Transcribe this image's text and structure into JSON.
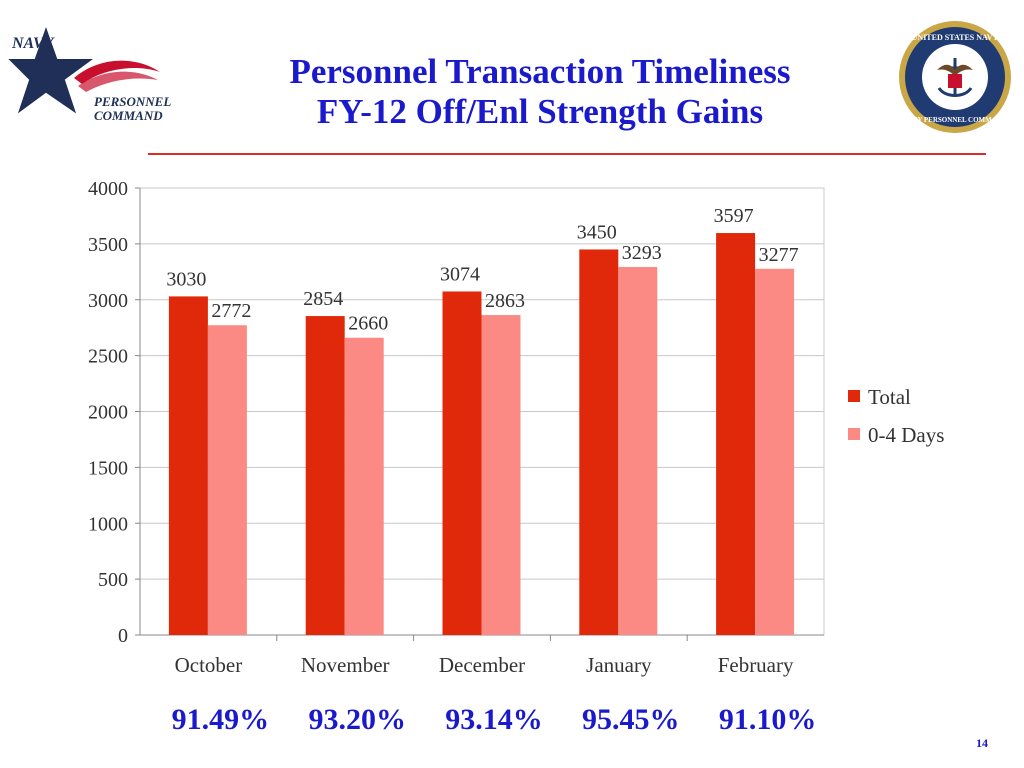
{
  "slide": {
    "title_line1": "Personnel Transaction Timeliness",
    "title_line2": "FY-12 Off/Enl Strength Gains",
    "page_number": "14"
  },
  "logo_left": {
    "text_line1": "NAVY",
    "text_line2": "PERSONNEL",
    "text_line3": "COMMAND"
  },
  "logo_right": {
    "text_top": "UNITED STATES NAVY",
    "text_bottom": "NAVY PERSONNEL COMMAND"
  },
  "chart_data": {
    "type": "bar",
    "categories": [
      "October",
      "November",
      "December",
      "January",
      "February"
    ],
    "series": [
      {
        "name": "Total",
        "color": "#e0280a",
        "values": [
          3030,
          2854,
          3074,
          3450,
          3597
        ]
      },
      {
        "name": "0-4 Days",
        "color": "#fb8a84",
        "values": [
          2772,
          2660,
          2863,
          3293,
          3277
        ]
      }
    ],
    "ylim": [
      0,
      4000
    ],
    "yticks": [
      0,
      500,
      1000,
      1500,
      2000,
      2500,
      3000,
      3500,
      4000
    ],
    "grid": true,
    "legend_position": "right",
    "percentages": [
      "91.49%",
      "93.20%",
      "93.14%",
      "95.45%",
      "91.10%"
    ]
  }
}
